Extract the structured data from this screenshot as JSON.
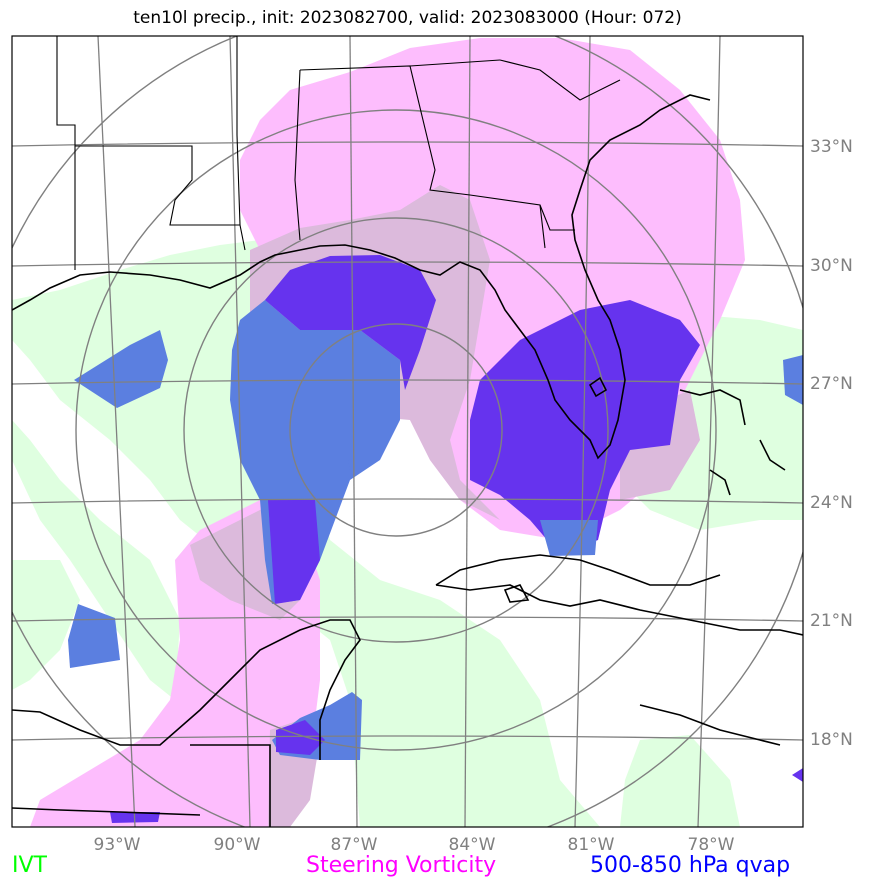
{
  "title": "ten10l precip., init: 2023082700, valid: 2023083000 (Hour: 072)",
  "legend": [
    {
      "label": "IVT",
      "color": "#00ff00"
    },
    {
      "label": "Steering Vorticity",
      "color": "#ff00ff"
    },
    {
      "label": "500-850 hPa qvap",
      "color": "#0000ff"
    }
  ],
  "colors": {
    "ivt_fill": "#dfffe0",
    "vorticity_fill": "#fdbdfd",
    "overlap_fill": "#dcbadc",
    "qvap_fill": "#5b7fe0",
    "qvap_strong_fill": "#6633ee",
    "grid": "#808080",
    "coast": "#000000"
  },
  "lon_ticks": [
    "93°W",
    "90°W",
    "87°W",
    "84°W",
    "81°W",
    "78°W"
  ],
  "lat_ticks": [
    "33°N",
    "30°N",
    "27°N",
    "24°N",
    "21°N",
    "18°N"
  ]
}
